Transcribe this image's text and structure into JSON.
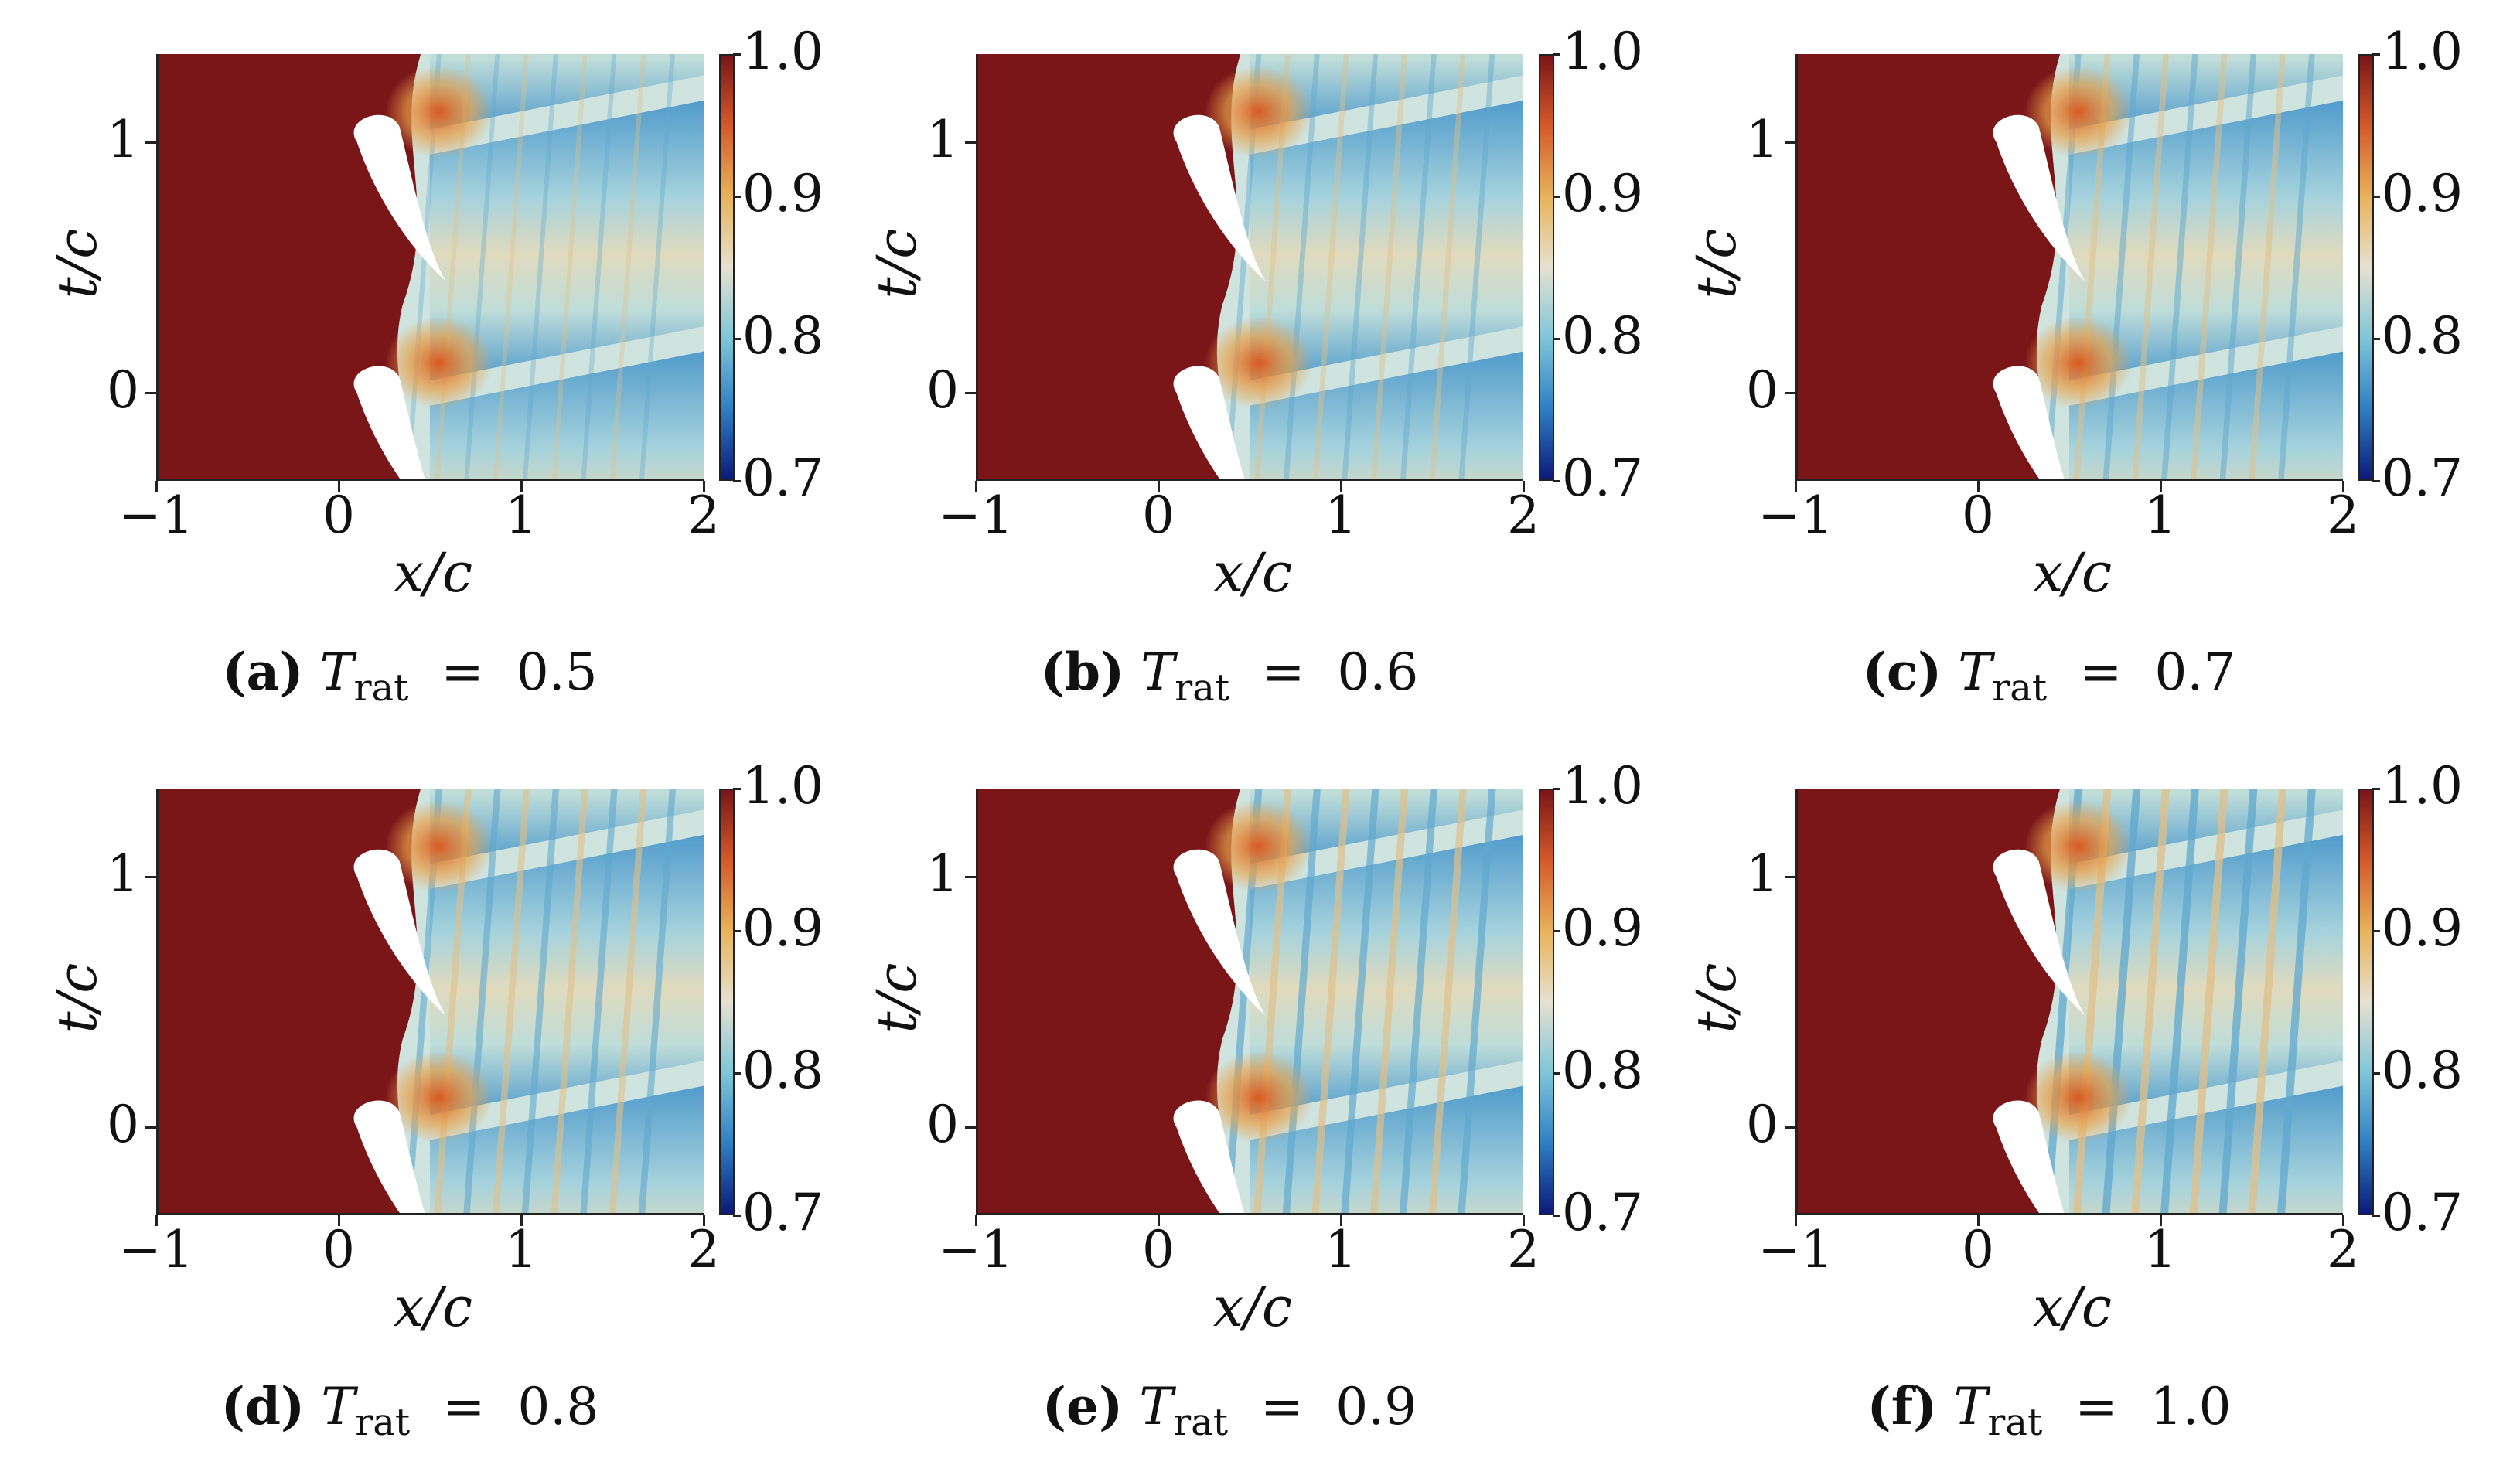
{
  "figure": {
    "panels": [
      {
        "label": "(a)",
        "value": "0.5"
      },
      {
        "label": "(b)",
        "value": "0.6"
      },
      {
        "label": "(c)",
        "value": "0.7"
      },
      {
        "label": "(d)",
        "value": "0.8"
      },
      {
        "label": "(e)",
        "value": "0.9"
      },
      {
        "label": "(f)",
        "value": "1.0"
      }
    ],
    "caption_symbol": "T",
    "caption_subscript": "rat",
    "caption_equals": "=",
    "xlabel": "x/c",
    "ylabel": "t/c",
    "xticks": [
      "−1",
      "0",
      "1",
      "2"
    ],
    "yticks": [
      "1",
      "0"
    ],
    "colorbar_ticks": [
      "1.0",
      "0.9",
      "0.8",
      "0.7"
    ]
  },
  "chart_data": {
    "type": "heatmap",
    "panels": 6,
    "x_range": [
      -1,
      2
    ],
    "y_range": [
      -0.35,
      1.35
    ],
    "colorbar_range": [
      0.7,
      1.0
    ],
    "colormap": [
      "#0b1a7a",
      "#2f7fc4",
      "#7fc6d8",
      "#e6e1d0",
      "#e8b35a",
      "#d45a2a",
      "#7a1518"
    ],
    "parameter_values": [
      0.5,
      0.6,
      0.7,
      0.8,
      0.9,
      1.0
    ]
  }
}
